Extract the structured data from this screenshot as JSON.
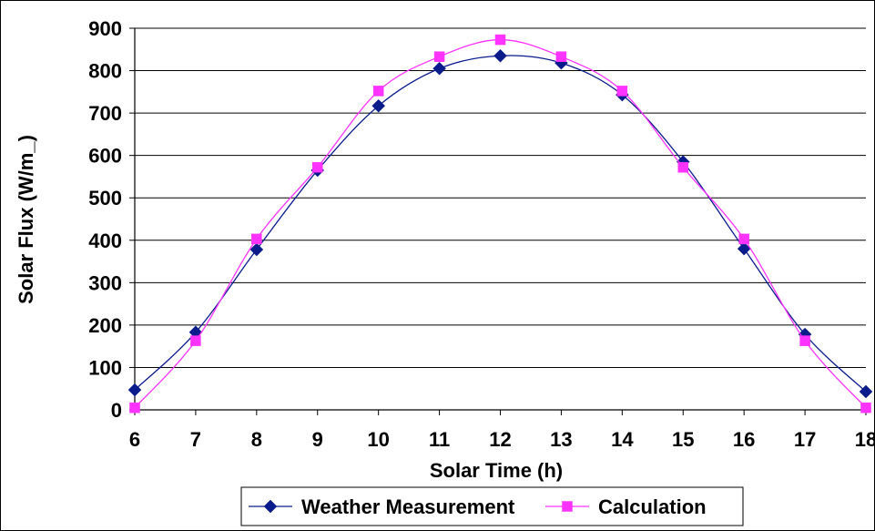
{
  "chart_data": {
    "type": "line",
    "title": "",
    "xlabel": "Solar Time (h)",
    "ylabel": "Solar Flux (W/m_)",
    "xlim": [
      6,
      18
    ],
    "ylim": [
      0,
      900
    ],
    "xticks": [
      "6",
      "7",
      "8",
      "9",
      "10",
      "11",
      "12",
      "13",
      "14",
      "15",
      "16",
      "17",
      "18"
    ],
    "yticks": [
      "0",
      "100",
      "200",
      "300",
      "400",
      "500",
      "600",
      "700",
      "800",
      "900"
    ],
    "grid": "horizontal major gridlines",
    "legend_position": "bottom",
    "smoothed_lines": true,
    "series": [
      {
        "name": "Weather Measurement",
        "color": "#0A1C8C",
        "marker": "diamond",
        "x": [
          6,
          7,
          8,
          9,
          10,
          11,
          12,
          13,
          14,
          15,
          16,
          17,
          18
        ],
        "y": [
          47,
          183,
          378,
          565,
          717,
          805,
          835,
          818,
          743,
          585,
          380,
          178,
          43
        ]
      },
      {
        "name": "Calculation",
        "color": "#FF33FF",
        "marker": "square",
        "x": [
          6,
          7,
          8,
          9,
          10,
          11,
          12,
          13,
          14,
          15,
          16,
          17,
          18
        ],
        "y": [
          5,
          163,
          403,
          572,
          752,
          833,
          873,
          833,
          752,
          572,
          403,
          163,
          5
        ]
      }
    ]
  }
}
